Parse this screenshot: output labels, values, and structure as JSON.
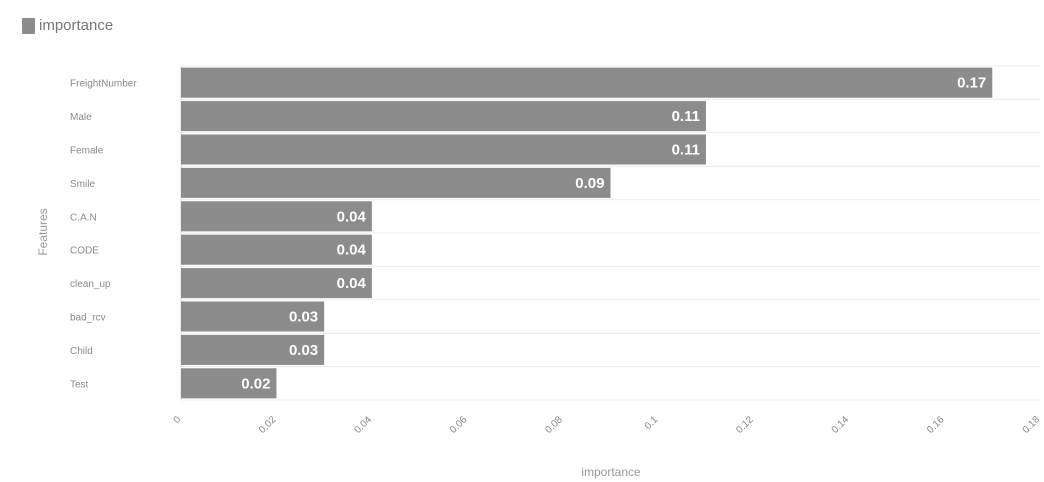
{
  "legend": {
    "label": "importance",
    "color": "#8c8c8c"
  },
  "chart_data": {
    "type": "bar",
    "orientation": "horizontal",
    "title": "",
    "xlabel": "importance",
    "ylabel": "Features",
    "categories": [
      "FreightNumber",
      "Male",
      "Female",
      "Smile",
      "C.A.N",
      "CODE",
      "clean_up",
      "bad_rcv",
      "Child",
      "Test"
    ],
    "series": [
      {
        "name": "importance",
        "values": [
          0.17,
          0.11,
          0.11,
          0.09,
          0.04,
          0.04,
          0.04,
          0.03,
          0.03,
          0.02
        ],
        "value_labels": [
          "0.17",
          "0.11",
          "0.11",
          "0.09",
          "0.04",
          "0.04",
          "0.04",
          "0.03",
          "0.03",
          "0.02"
        ]
      }
    ],
    "xlim": [
      0,
      0.18
    ],
    "xticks": [
      0,
      0.02,
      0.04,
      0.06,
      0.08,
      0.1,
      0.12,
      0.14,
      0.16,
      0.18
    ],
    "xtick_labels": [
      "0",
      "0.02",
      "0.04",
      "0.06",
      "0.08",
      "0.1",
      "0.12",
      "0.14",
      "0.16",
      "0.18"
    ],
    "grid": true,
    "legend_position": "top-left",
    "bar_color": "#8c8c8c"
  }
}
